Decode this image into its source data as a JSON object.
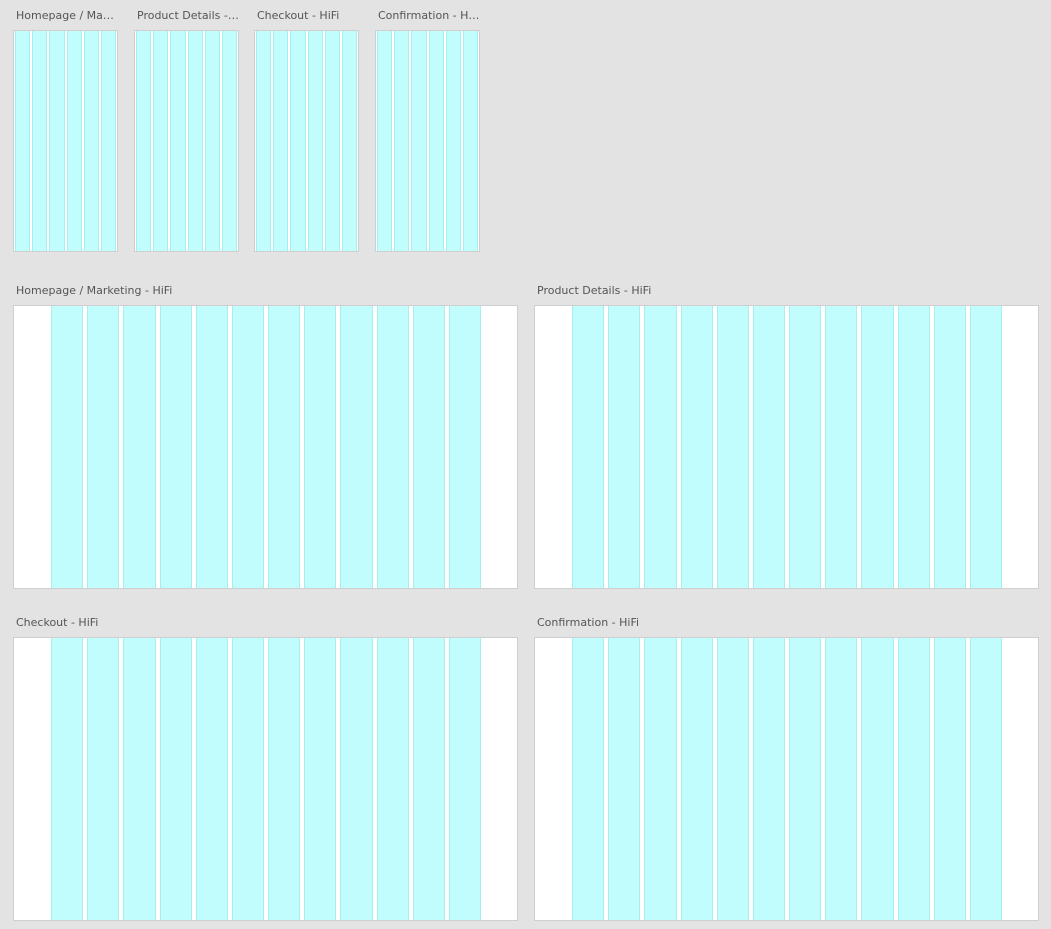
{
  "canvas": {
    "background_color": "#e3e3e3"
  },
  "grid_overlay": {
    "column_color": "#c2fdfd",
    "column_edge_color": "#a8eeee",
    "columns_small": 6,
    "columns_large": 12
  },
  "artboards_small": [
    {
      "title": "Homepage / Marketing - HiFi"
    },
    {
      "title": "Product Details - HiFi"
    },
    {
      "title": "Checkout - HiFi"
    },
    {
      "title": "Confirmation - HiFi"
    }
  ],
  "artboards_large": [
    {
      "title": "Homepage / Marketing - HiFi"
    },
    {
      "title": "Product Details - HiFi"
    },
    {
      "title": "Checkout - HiFi"
    },
    {
      "title": "Confirmation - HiFi"
    }
  ]
}
